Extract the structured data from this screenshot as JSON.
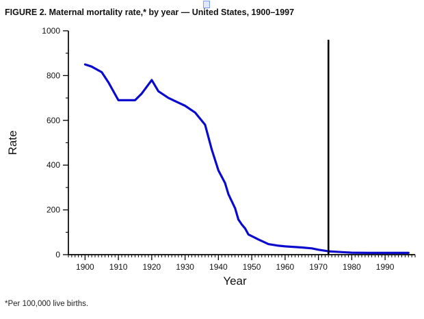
{
  "page": {
    "title": "FIGURE 2. Maternal mortality rate,* by year — United States, 1900–1997",
    "footnote": "*Per 100,000 live births.",
    "top_icon": "image-placeholder-icon"
  },
  "chart_data": {
    "type": "line",
    "title": "FIGURE 2. Maternal mortality rate,* by year — United States, 1900–1997",
    "xlabel": "Year",
    "ylabel": "Rate",
    "xlim": [
      1895,
      1999
    ],
    "ylim": [
      0,
      1000
    ],
    "x_ticks": [
      1900,
      1910,
      1920,
      1930,
      1940,
      1950,
      1960,
      1970,
      1980,
      1990
    ],
    "y_ticks": [
      0,
      200,
      400,
      600,
      800,
      1000
    ],
    "x_minor_tick_step": 1,
    "y_minor_tick_step": 100,
    "grid": false,
    "legend": "none",
    "line_color": "#0a0acc",
    "axis_color": "#000000",
    "series": [
      {
        "name": "Maternal mortality rate per 100,000 live births",
        "points": [
          [
            1900,
            850
          ],
          [
            1902,
            840
          ],
          [
            1905,
            815
          ],
          [
            1907,
            770
          ],
          [
            1910,
            690
          ],
          [
            1915,
            690
          ],
          [
            1917,
            720
          ],
          [
            1920,
            780
          ],
          [
            1922,
            730
          ],
          [
            1925,
            700
          ],
          [
            1930,
            665
          ],
          [
            1933,
            635
          ],
          [
            1936,
            580
          ],
          [
            1938,
            470
          ],
          [
            1940,
            376
          ],
          [
            1942,
            320
          ],
          [
            1943,
            270
          ],
          [
            1945,
            207
          ],
          [
            1946,
            157
          ],
          [
            1947,
            135
          ],
          [
            1948,
            117
          ],
          [
            1949,
            90
          ],
          [
            1950,
            83
          ],
          [
            1952,
            68
          ],
          [
            1955,
            47
          ],
          [
            1958,
            40
          ],
          [
            1960,
            37
          ],
          [
            1965,
            32
          ],
          [
            1968,
            28
          ],
          [
            1970,
            22
          ],
          [
            1973,
            15
          ],
          [
            1975,
            13
          ],
          [
            1980,
            9
          ],
          [
            1985,
            8
          ],
          [
            1990,
            8
          ],
          [
            1997,
            8
          ]
        ]
      }
    ],
    "annotations": [
      {
        "type": "vline",
        "x": 1973,
        "y_from": 0,
        "y_to": 960,
        "color": "#000000"
      }
    ],
    "footnote": "*Per 100,000 live births."
  }
}
